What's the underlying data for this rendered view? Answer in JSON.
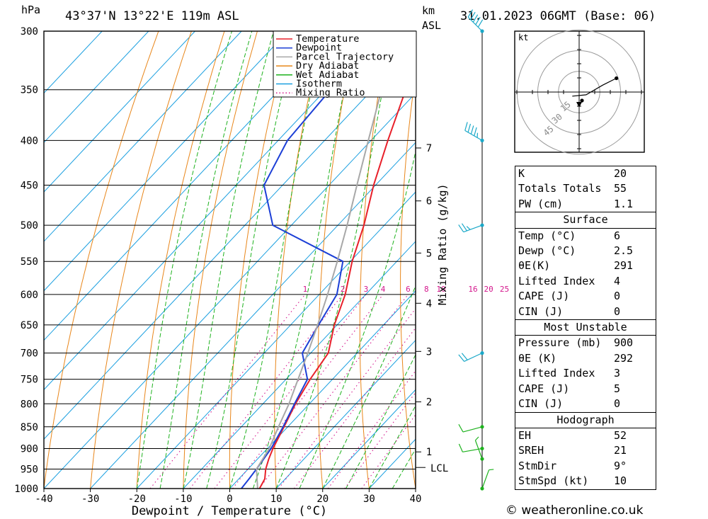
{
  "header": {
    "pressure_unit": "hPa",
    "location": "43°37'N 13°22'E 119m ASL",
    "height_unit_1": "km",
    "height_unit_2": "ASL",
    "date": "31.01.2023 06GMT (Base: 06)"
  },
  "chart_data": {
    "type": "line",
    "title": "",
    "xlabel": "Dewpoint / Temperature (°C)",
    "ylabel": "hPa",
    "secondary_axis_label": "Mixing Ratio (g/kg)",
    "xlim": [
      -40,
      40
    ],
    "ylim": [
      1000,
      300
    ],
    "y_log_scale": true,
    "pressure_ticks": [
      300,
      350,
      400,
      450,
      500,
      550,
      600,
      650,
      700,
      750,
      800,
      850,
      900,
      950,
      1000
    ],
    "temperature_ticks": [
      -40,
      -30,
      -20,
      -10,
      0,
      10,
      20,
      30,
      40
    ],
    "height_ticks": [
      {
        "km": "1",
        "p": 908
      },
      {
        "km": "2",
        "p": 796
      },
      {
        "km": "3",
        "p": 697
      },
      {
        "km": "4",
        "p": 614
      },
      {
        "km": "5",
        "p": 538
      },
      {
        "km": "6",
        "p": 469
      },
      {
        "km": "7",
        "p": 408
      }
    ],
    "lcl": {
      "label": "LCL",
      "p": 946
    },
    "mixing_ratio_labels": [
      "1",
      "2",
      "3",
      "4",
      "6",
      "8",
      "10",
      "16",
      "20",
      "25"
    ],
    "mixing_ratios": [
      1,
      2,
      3,
      4,
      6,
      8,
      10,
      16,
      20,
      25
    ],
    "legend": [
      "Temperature",
      "Dewpoint",
      "Parcel Trajectory",
      "Dry Adiabat",
      "Wet Adiabat",
      "Isotherm",
      "Mixing Ratio"
    ],
    "legend_position": "top-right",
    "colors": {
      "temperature": "#e8202a",
      "dewpoint": "#1c3fd6",
      "parcel": "#a8a8a8",
      "dry_adiabat": "#e8861a",
      "wet_adiabat": "#1eb21e",
      "isotherm": "#1a9fe0",
      "mixing_ratio": "#d4168c"
    },
    "series": [
      {
        "name": "Temperature",
        "points": [
          [
            1000,
            6.4
          ],
          [
            975,
            5.6
          ],
          [
            950,
            3.8
          ],
          [
            925,
            2.4
          ],
          [
            900,
            1.2
          ],
          [
            850,
            -0.8
          ],
          [
            800,
            -3.0
          ],
          [
            750,
            -4.8
          ],
          [
            700,
            -6.2
          ],
          [
            650,
            -10.6
          ],
          [
            600,
            -14.4
          ],
          [
            550,
            -19.6
          ],
          [
            500,
            -24.4
          ],
          [
            450,
            -30.4
          ],
          [
            400,
            -36.4
          ],
          [
            350,
            -42.8
          ],
          [
            300,
            -47.2
          ]
        ]
      },
      {
        "name": "Dewpoint",
        "points": [
          [
            1000,
            2.5
          ],
          [
            975,
            2.2
          ],
          [
            950,
            1.8
          ],
          [
            900,
            0.8
          ],
          [
            850,
            -1.0
          ],
          [
            800,
            -3.2
          ],
          [
            750,
            -5.4
          ],
          [
            700,
            -11.8
          ],
          [
            650,
            -14.0
          ],
          [
            600,
            -16.2
          ],
          [
            550,
            -21.6
          ],
          [
            500,
            -44.0
          ],
          [
            450,
            -54.0
          ],
          [
            400,
            -58.0
          ],
          [
            350,
            -59.0
          ],
          [
            300,
            -60.0
          ]
        ]
      },
      {
        "name": "Parcel Trajectory",
        "points": [
          [
            1000,
            6.0
          ],
          [
            950,
            1.8
          ],
          [
            900,
            0.4
          ],
          [
            850,
            -2.0
          ],
          [
            800,
            -4.4
          ],
          [
            750,
            -7.4
          ],
          [
            700,
            -10.6
          ],
          [
            650,
            -14.2
          ],
          [
            600,
            -18.2
          ],
          [
            550,
            -22.8
          ],
          [
            500,
            -28.0
          ],
          [
            450,
            -34.0
          ],
          [
            400,
            -40.6
          ],
          [
            350,
            -48.0
          ],
          [
            300,
            -56.4
          ]
        ]
      }
    ]
  },
  "wind_barbs": [
    {
      "p": 300,
      "dir": 315,
      "spd": 50
    },
    {
      "p": 400,
      "dir": 300,
      "spd": 45
    },
    {
      "p": 500,
      "dir": 250,
      "spd": 25
    },
    {
      "p": 700,
      "dir": 245,
      "spd": 20
    },
    {
      "p": 850,
      "dir": 255,
      "spd": 10
    },
    {
      "p": 900,
      "dir": 260,
      "spd": 10
    },
    {
      "p": 925,
      "dir": 340,
      "spd": 5
    },
    {
      "p": 1000,
      "dir": 20,
      "spd": 5
    }
  ],
  "hodograph": {
    "unit": "kt",
    "ring_labels": [
      "15",
      "30",
      "45"
    ],
    "trace": [
      [
        -5,
        -3
      ],
      [
        5,
        -2
      ],
      [
        17,
        5
      ],
      [
        27,
        10
      ]
    ],
    "storm_motion": [
      2,
      -8
    ]
  },
  "indices": {
    "rows1": [
      {
        "label": "K",
        "value": "20"
      },
      {
        "label": "Totals Totals",
        "value": "55"
      },
      {
        "label": "PW (cm)",
        "value": "1.1"
      }
    ],
    "surface_title": "Surface",
    "surface": [
      {
        "label": "Temp (°C)",
        "value": "6"
      },
      {
        "label": "Dewp (°C)",
        "value": "2.5"
      },
      {
        "label": "θE(K)",
        "value": "291"
      },
      {
        "label": "Lifted Index",
        "value": "4"
      },
      {
        "label": "CAPE (J)",
        "value": "0"
      },
      {
        "label": "CIN (J)",
        "value": "0"
      }
    ],
    "mu_title": "Most Unstable",
    "mu": [
      {
        "label": "Pressure (mb)",
        "value": "900"
      },
      {
        "label": "θE (K)",
        "value": "292"
      },
      {
        "label": "Lifted Index",
        "value": "3"
      },
      {
        "label": "CAPE (J)",
        "value": "5"
      },
      {
        "label": "CIN (J)",
        "value": "0"
      }
    ],
    "hodo_title": "Hodograph",
    "hodo": [
      {
        "label": "EH",
        "value": "52"
      },
      {
        "label": "SREH",
        "value": "21"
      },
      {
        "label": "StmDir",
        "value": "9°"
      },
      {
        "label": "StmSpd (kt)",
        "value": "10"
      }
    ]
  },
  "footer": {
    "credit": "© weatheronline.co.uk"
  }
}
